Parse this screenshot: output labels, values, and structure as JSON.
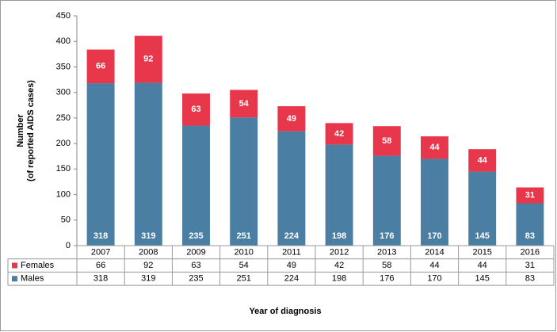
{
  "chart_data": {
    "type": "stacked_bar",
    "categories": [
      "2007",
      "2008",
      "2009",
      "2010",
      "2011",
      "2012",
      "2013",
      "2014",
      "2015",
      "2016"
    ],
    "series": [
      {
        "name": "Males",
        "color": "#4a7ea3",
        "values": [
          318,
          319,
          235,
          251,
          224,
          198,
          176,
          170,
          145,
          83
        ]
      },
      {
        "name": "Females",
        "color": "#e8364b",
        "values": [
          66,
          92,
          63,
          54,
          49,
          42,
          58,
          44,
          44,
          31
        ]
      }
    ],
    "y_label": [
      "Number",
      "(of reported AIDS cases)"
    ],
    "x_label": "Year of diagnosis",
    "ylim": [
      0,
      450
    ],
    "yticks": [
      0,
      50,
      100,
      150,
      200,
      250,
      300,
      350,
      400,
      450
    ],
    "grid": false
  }
}
